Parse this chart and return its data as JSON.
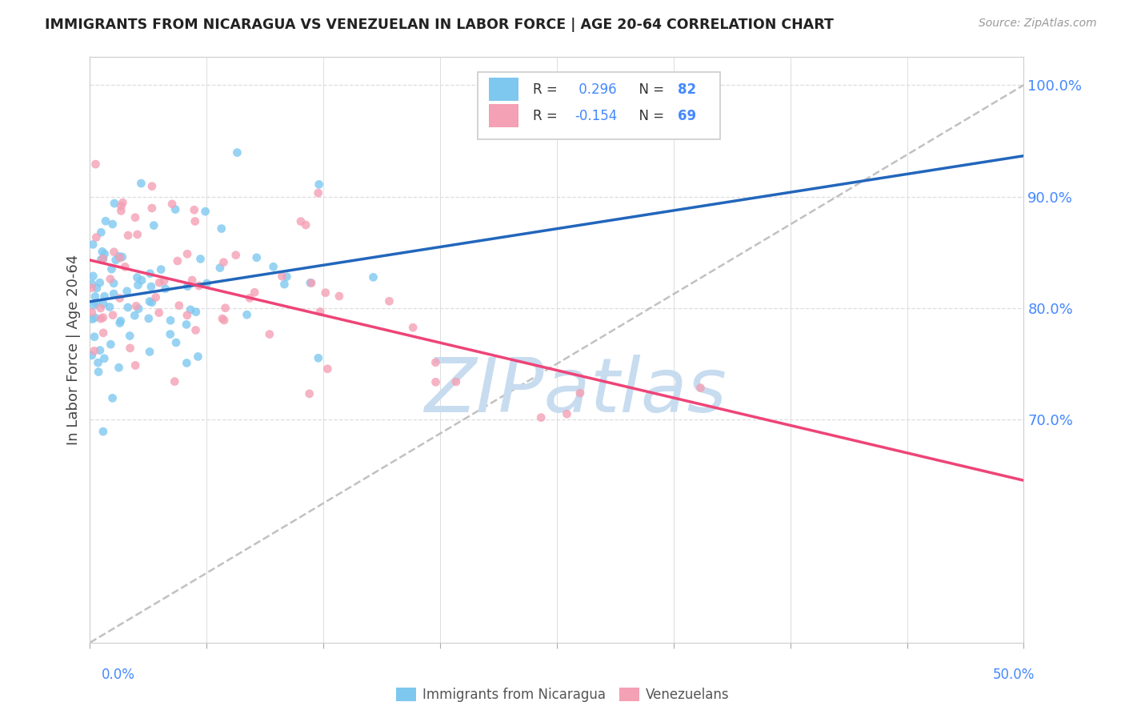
{
  "title": "IMMIGRANTS FROM NICARAGUA VS VENEZUELAN IN LABOR FORCE | AGE 20-64 CORRELATION CHART",
  "source": "Source: ZipAtlas.com",
  "ylabel_label": "In Labor Force | Age 20-64",
  "legend_nicaragua": "Immigrants from Nicaragua",
  "legend_venezuela": "Venezuelans",
  "color_nicaragua": "#7EC8F0",
  "color_venezuela": "#F4A0B5",
  "color_line_nicaragua": "#2266BB",
  "color_line_venezuela": "#EE4477",
  "color_dashed": "#BBBBBB",
  "color_grid": "#DDDDDD",
  "color_axis_labels": "#4488FF",
  "watermark": "ZIPatlas",
  "watermark_color": "#C8DCF0",
  "xmin": 0.0,
  "xmax": 0.5,
  "ymin": 0.5,
  "ymax": 1.025,
  "yticks": [
    0.7,
    0.8,
    0.9,
    1.0
  ],
  "ytick_labels": [
    "70.0%",
    "80.0%",
    "90.0%",
    "100.0%"
  ],
  "xtick_left_label": "0.0%",
  "xtick_right_label": "50.0%",
  "r_nic": 0.296,
  "n_nic": 82,
  "r_ven": -0.154,
  "n_ven": 69,
  "nic_seed": 42,
  "ven_seed": 99
}
